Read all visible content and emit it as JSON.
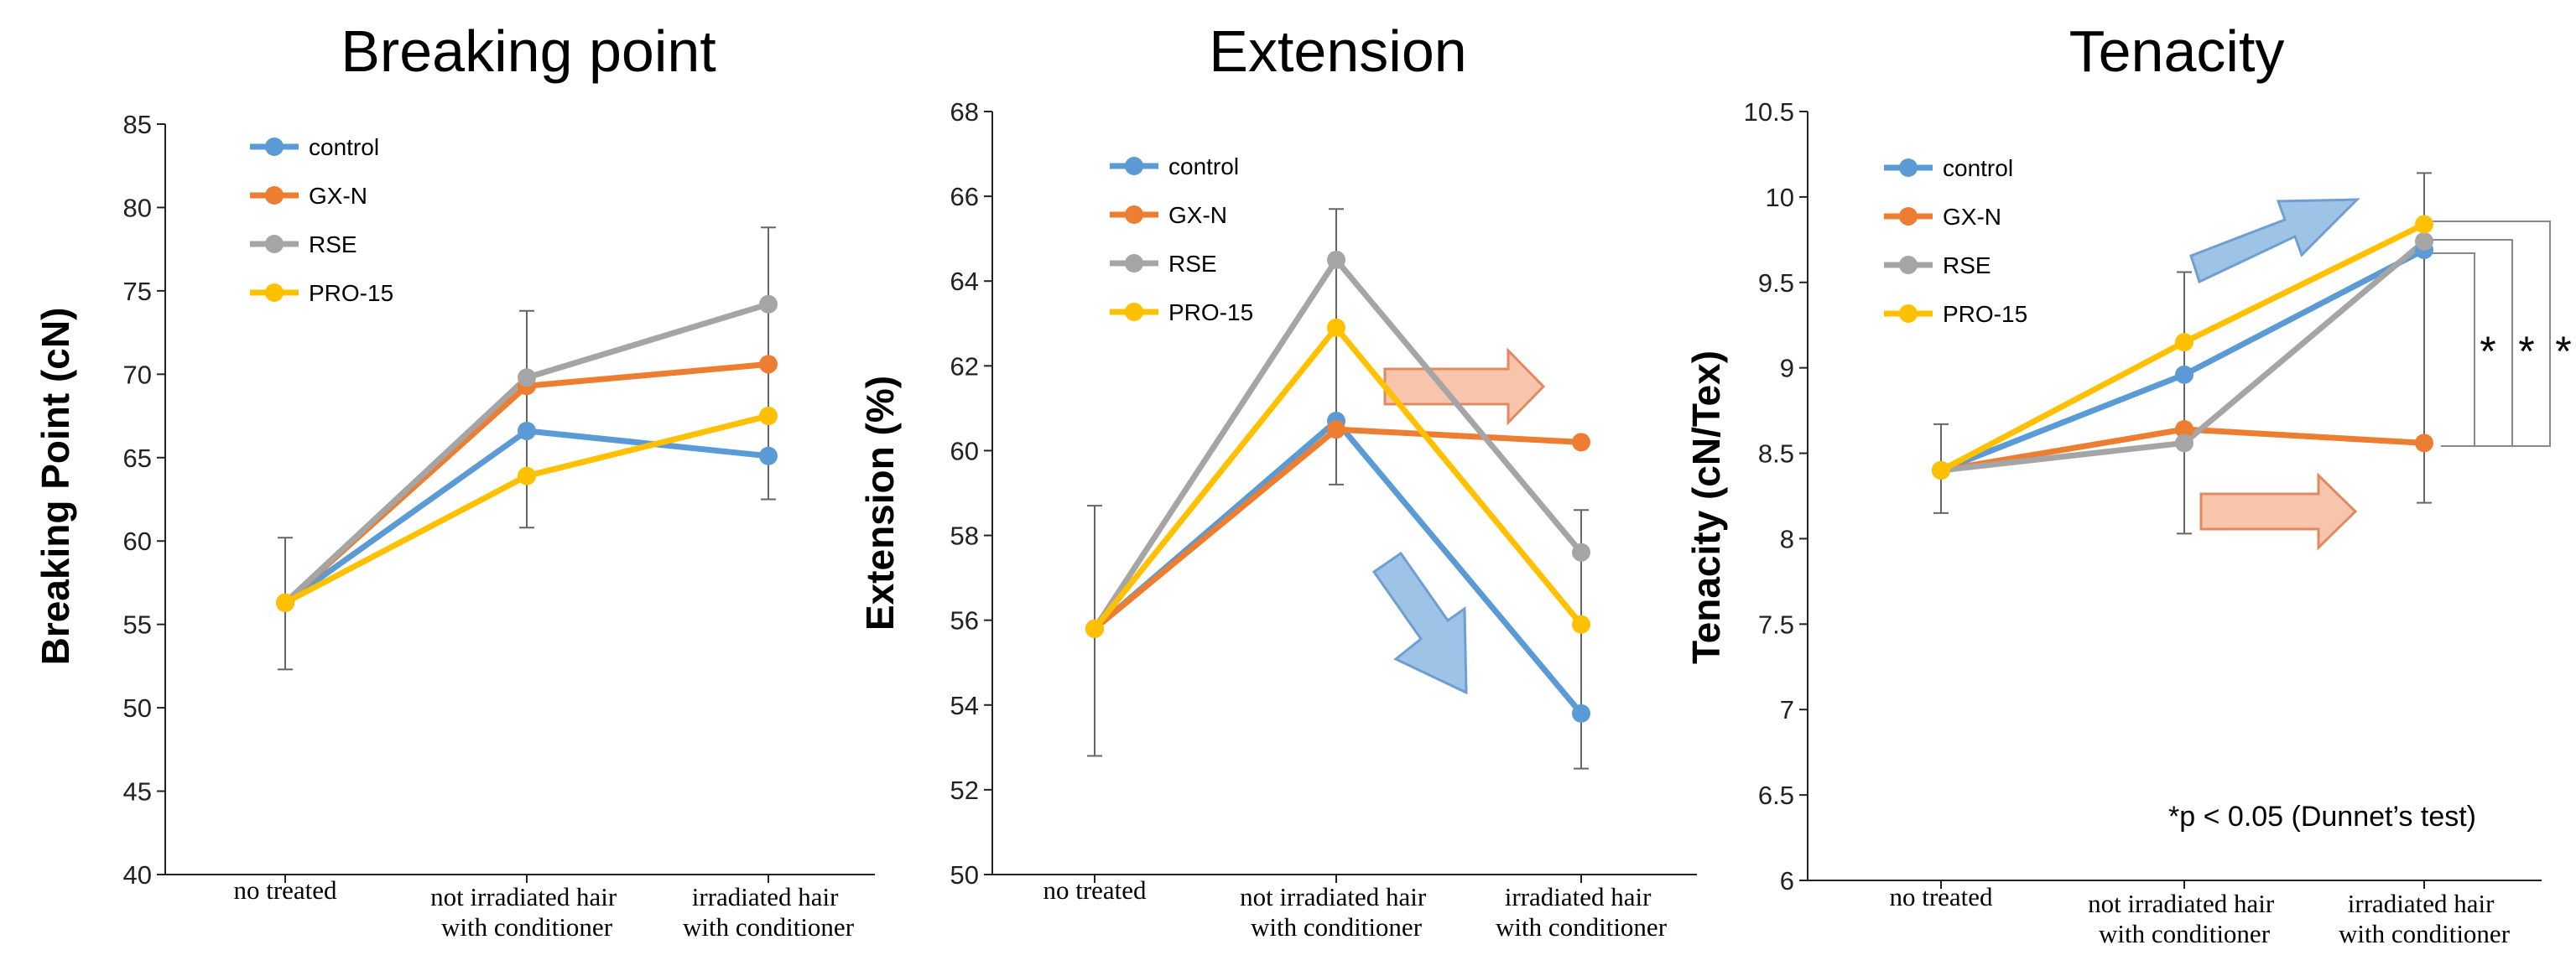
{
  "chart_data": [
    {
      "type": "line",
      "title": "Breaking point",
      "xlabel": "",
      "ylabel": "Breaking Point (cN)",
      "ylim": [
        40,
        85
      ],
      "yticks": [
        40,
        45,
        50,
        55,
        60,
        65,
        70,
        75,
        80,
        85
      ],
      "ytick_labels": [
        "40",
        "45",
        "50",
        "55",
        "60",
        "65",
        "70",
        "75",
        "80",
        "85"
      ],
      "categories": [
        [
          "no treated"
        ],
        [
          "not irradiated hair",
          "with conditioner"
        ],
        [
          "irradiated hair",
          "with conditioner"
        ]
      ],
      "series": [
        {
          "name": "control",
          "color": "#5b9bd5",
          "values": [
            56.3,
            66.6,
            65.1
          ]
        },
        {
          "name": "GX-N",
          "color": "#ed7d31",
          "values": [
            56.3,
            69.3,
            70.6
          ]
        },
        {
          "name": "RSE",
          "color": "#a5a5a5",
          "values": [
            56.3,
            69.8,
            74.2
          ]
        },
        {
          "name": "PRO-15",
          "color": "#ffc000",
          "values": [
            56.3,
            63.9,
            67.5
          ]
        }
      ],
      "error_bars": [
        {
          "x": 0,
          "low": 52.3,
          "high": 60.2
        },
        {
          "x": 1,
          "low": 60.8,
          "high": 73.8
        },
        {
          "x": 2,
          "low": 62.5,
          "high": 78.8
        }
      ],
      "legend_position": "top-left",
      "arrows": []
    },
    {
      "type": "line",
      "title": "Extension",
      "xlabel": "",
      "ylabel": "Extension (%)",
      "ylim": [
        50,
        68
      ],
      "yticks": [
        50,
        52,
        54,
        56,
        58,
        60,
        62,
        64,
        66,
        68
      ],
      "ytick_labels": [
        "50",
        "52",
        "54",
        "56",
        "58",
        "60",
        "62",
        "64",
        "66",
        "68"
      ],
      "categories": [
        [
          "no treated"
        ],
        [
          "not irradiated hair",
          "with conditioner"
        ],
        [
          "irradiated hair",
          "with conditioner"
        ]
      ],
      "series": [
        {
          "name": "control",
          "color": "#5b9bd5",
          "values": [
            55.8,
            60.7,
            53.8
          ]
        },
        {
          "name": "GX-N",
          "color": "#ed7d31",
          "values": [
            55.8,
            60.5,
            60.2
          ]
        },
        {
          "name": "RSE",
          "color": "#a5a5a5",
          "values": [
            55.8,
            64.5,
            57.6
          ]
        },
        {
          "name": "PRO-15",
          "color": "#ffc000",
          "values": [
            55.8,
            62.9,
            55.9
          ]
        }
      ],
      "error_bars": [
        {
          "x": 0,
          "low": 52.8,
          "high": 58.7
        },
        {
          "x": 1,
          "low": 59.2,
          "high": 65.7
        },
        {
          "x": 2,
          "low": 52.5,
          "high": 58.6
        }
      ],
      "legend_position": "top-left",
      "arrows": [
        {
          "color": "orange",
          "direction": "right",
          "at": [
            1.1,
            61.6
          ]
        },
        {
          "color": "blue",
          "direction": "down-right",
          "at": [
            1.55,
            55.0
          ]
        }
      ]
    },
    {
      "type": "line",
      "title": "Tenacity",
      "xlabel": "",
      "ylabel": "Tenacity (cN/Tex)",
      "ylim": [
        6,
        10.5
      ],
      "yticks": [
        6,
        6.5,
        7,
        7.5,
        8,
        8.5,
        9,
        9.5,
        10,
        10.5
      ],
      "ytick_labels": [
        "6",
        "6.5",
        "7",
        "7.5",
        "8",
        "8.5",
        "9",
        "9.5",
        "10",
        "10.5"
      ],
      "categories": [
        [
          "no treated"
        ],
        [
          "not irradiated hair",
          "with conditioner"
        ],
        [
          "irradiated hair",
          "with conditioner"
        ]
      ],
      "series": [
        {
          "name": "control",
          "color": "#5b9bd5",
          "values": [
            8.4,
            8.96,
            9.69
          ]
        },
        {
          "name": "GX-N",
          "color": "#ed7d31",
          "values": [
            8.4,
            8.64,
            8.56
          ]
        },
        {
          "name": "RSE",
          "color": "#a5a5a5",
          "values": [
            8.4,
            8.56,
            9.74
          ]
        },
        {
          "name": "PRO-15",
          "color": "#ffc000",
          "values": [
            8.4,
            9.15,
            9.84
          ]
        }
      ],
      "error_bars": [
        {
          "x": 0,
          "low": 8.15,
          "high": 8.67
        },
        {
          "x": 1,
          "low": 8.03,
          "high": 9.56
        },
        {
          "x": 2,
          "low": 8.21,
          "high": 10.14
        }
      ],
      "legend_position": "top-left",
      "annotation": "*p < 0.05 (Dunnet’s test)",
      "significance": [
        "*",
        "*",
        "*"
      ],
      "arrows": [
        {
          "color": "blue",
          "direction": "up-right",
          "at": [
            1.3,
            9.5
          ]
        },
        {
          "color": "orange",
          "direction": "right",
          "at": [
            1.2,
            8.15
          ]
        }
      ]
    }
  ]
}
